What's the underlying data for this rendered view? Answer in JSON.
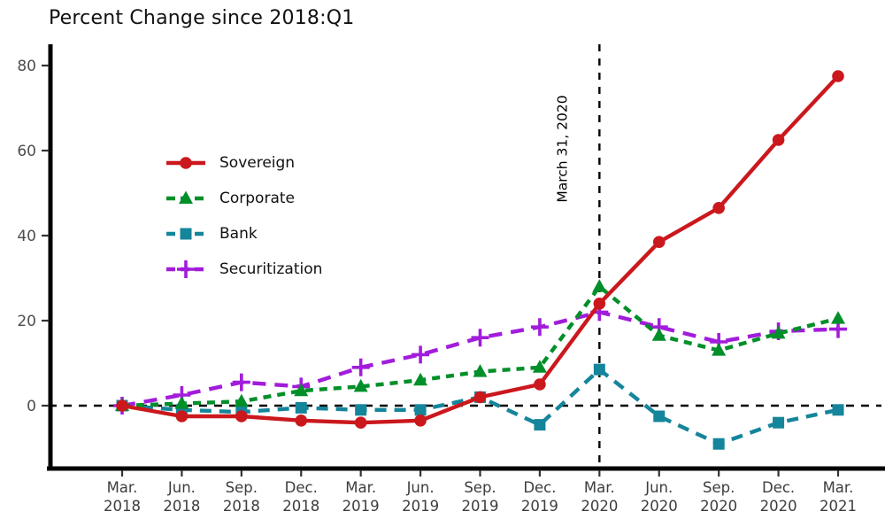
{
  "chart_data": {
    "type": "line",
    "title": "Percent Change since 2018:Q1",
    "categories": [
      "Mar. 2018",
      "Jun. 2018",
      "Sep. 2018",
      "Dec. 2018",
      "Mar. 2019",
      "Jun. 2019",
      "Sep. 2019",
      "Dec. 2019",
      "Mar. 2020",
      "Jun. 2020",
      "Sep. 2020",
      "Dec. 2020",
      "Mar. 2021"
    ],
    "yticks": [
      0,
      20,
      40,
      60,
      80
    ],
    "ylim": [
      -14,
      85
    ],
    "grid": false,
    "legend_position": "upper-left-inside",
    "zero_line_value": 0,
    "annotation": {
      "label": "March 31, 2020",
      "category": "Mar. 2020",
      "x_index": 8
    },
    "series": [
      {
        "name": "Sovereign",
        "color": "#cb181d",
        "line_style": "solid",
        "marker": "circle",
        "values": [
          0,
          -2.5,
          -2.5,
          -3.5,
          -4,
          -3.5,
          2,
          5,
          24,
          38.5,
          46.5,
          62.5,
          77.5
        ]
      },
      {
        "name": "Corporate",
        "color": "#008f29",
        "line_style": "dashed",
        "marker": "triangle",
        "values": [
          0,
          0.5,
          1,
          3.5,
          4.5,
          6,
          8,
          9,
          28,
          16.5,
          13,
          17,
          20.5
        ]
      },
      {
        "name": "Bank",
        "color": "#15859b",
        "line_style": "dashed",
        "marker": "square",
        "values": [
          0,
          -1,
          -1.5,
          -0.5,
          -1,
          -1,
          2,
          -4.5,
          8.5,
          -2.5,
          -9,
          -4,
          -1
        ]
      },
      {
        "name": "Securitization",
        "color": "#a21cdb",
        "line_style": "dashed",
        "marker": "plus",
        "values": [
          0,
          2.5,
          5.5,
          4.5,
          9,
          12,
          16,
          18.5,
          22,
          18.5,
          15,
          17.5,
          18
        ]
      }
    ],
    "axis_colors": {
      "spine": "#000000",
      "y_tick_label": "#4d4d4d",
      "x_tick_label": "#3d3d3d",
      "reference_lines": "#000000"
    }
  }
}
